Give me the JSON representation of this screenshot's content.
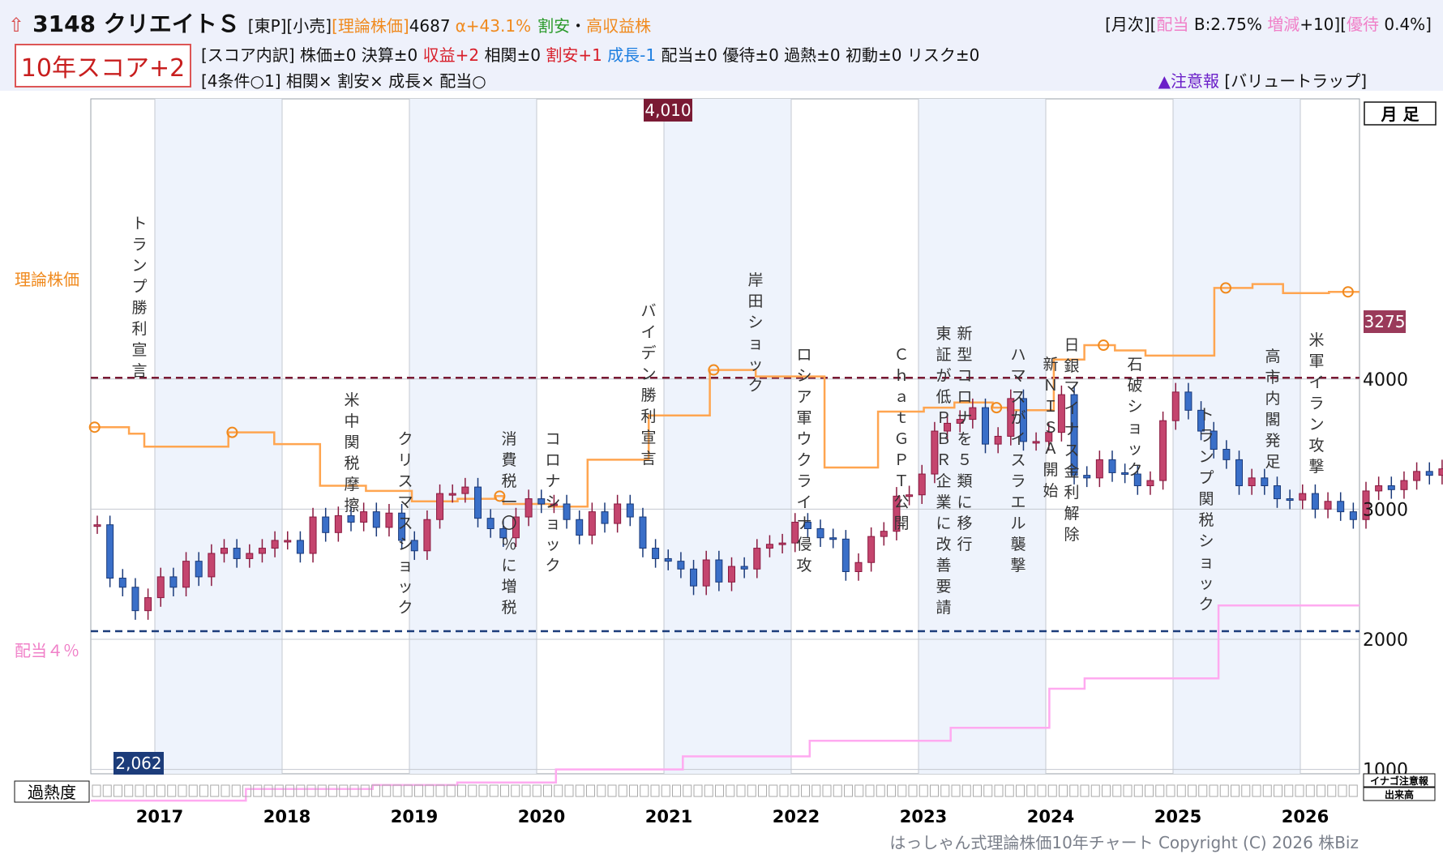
{
  "header": {
    "home_icon": "home-arrow-icon",
    "code_name": "3148 クリエイトＳ",
    "market": "[東P][小売]",
    "theory_label": "[理論株価]",
    "theory_value": "4687",
    "alpha": "α+43.1%",
    "tag_cheap": "割安",
    "tag_sep": "・",
    "tag_profit": "高収益株",
    "right_prefix": "[月次][",
    "div_label": "配当",
    "div_value": " B:2.75% ",
    "change_label": "増減",
    "change_value": "+10][",
    "yutai_label": "優待",
    "yutai_value": " 0.4%]"
  },
  "score": {
    "box": "10年スコア+2",
    "b_prefix": "[スコア内訳] 株価±0 決算±0 ",
    "b_profit": "収益+2",
    "b_mid": " 相関±0 ",
    "b_cheap": "割安+1",
    "b_sp": " ",
    "b_growth": "成長-1",
    "b_rest": " 配当±0 優待±0 過熱±0 初動±0 リスク±0",
    "conditions": "[4条件○1] 相関× 割安× 成長× 配当○",
    "warning": "▲注意報",
    "warning_tag": "[バリュートラップ]"
  },
  "labels": {
    "theory_price": "理論株価",
    "dividend4": "配当４％",
    "period": "月 足",
    "overheat": "過熱度",
    "inago": "イナゴ注意報",
    "volume": "出来高",
    "current_price": "3275",
    "high_label": "4,010",
    "low_label": "2,062"
  },
  "footer": "はっしゃん式理論株価10年チャート Copyright (C) 2026 株Biz",
  "chart_data": {
    "type": "candlestick",
    "title": "3148 クリエイトＳ",
    "y_ticks": [
      1000,
      2000,
      3000,
      4000
    ],
    "y_range": [
      -20,
      5160
    ],
    "x_labels": [
      "2017",
      "2018",
      "2019",
      "2020",
      "2021",
      "2022",
      "2023",
      "2024",
      "2025",
      "2026"
    ],
    "period_start": "2016-08",
    "high": 4010,
    "low": 2062,
    "last_price": 3275,
    "theory_price": [
      3630,
      3630,
      3630,
      3630,
      3630,
      3580,
      3580,
      3480,
      3480,
      3480,
      3480,
      3480,
      3480,
      3480,
      3480,
      3480,
      3480,
      3480,
      3590,
      3590,
      3590,
      3590,
      3590,
      3590,
      3500,
      3500,
      3500,
      3500,
      3500,
      3500,
      3180,
      3180,
      3180,
      3180,
      3180,
      3180,
      3140,
      3140,
      3140,
      3140,
      3140,
      3140,
      3060,
      3060,
      3060,
      3060,
      3060,
      3060,
      3080,
      3080,
      3080,
      3080,
      3080,
      3100,
      3040,
      3040,
      3040,
      3040,
      3040,
      3040,
      3020,
      3020,
      3020,
      3020,
      3020,
      3380,
      3380,
      3380,
      3380,
      3380,
      3380,
      3380,
      3380,
      3720,
      3720,
      3720,
      3720,
      3720,
      3720,
      3720,
      3720,
      4070,
      4070,
      4070,
      4070,
      4070,
      4070,
      4020,
      4020,
      4020,
      4020,
      4020,
      4020,
      4020,
      4020,
      4020,
      3320,
      3320,
      3320,
      3320,
      3320,
      3320,
      3320,
      3750,
      3750,
      3750,
      3750,
      3750,
      3750,
      3780,
      3780,
      3780,
      3780,
      3820,
      3820,
      3820,
      3820,
      3820,
      3780,
      3780,
      3760,
      3760,
      3760,
      3760,
      3760,
      3760,
      4150,
      4150,
      4150,
      4150,
      4260,
      4260,
      4260,
      4260,
      4220,
      4220,
      4220,
      4220,
      4180,
      4180,
      4180,
      4180,
      4180,
      4180,
      4180,
      4180,
      4180,
      4700,
      4700,
      4700,
      4700,
      4700,
      4730,
      4730,
      4730,
      4730,
      4660,
      4660,
      4660,
      4660,
      4660,
      4660,
      4670,
      4670,
      4670,
      4670
    ],
    "theory_markers": [
      0,
      18,
      53,
      81,
      118,
      132,
      148,
      164
    ],
    "dividend_4pct": [
      760,
      760,
      760,
      760,
      760,
      760,
      760,
      760,
      760,
      760,
      760,
      760,
      760,
      760,
      760,
      760,
      760,
      760,
      760,
      760,
      760,
      760,
      850,
      850,
      850,
      850,
      850,
      850,
      850,
      850,
      850,
      850,
      850,
      850,
      850,
      850,
      850,
      850,
      850,
      850,
      880,
      880,
      880,
      880,
      880,
      880,
      880,
      880,
      880,
      880,
      880,
      880,
      900,
      900,
      900,
      900,
      900,
      900,
      900,
      900,
      900,
      900,
      900,
      900,
      900,
      900,
      1000,
      1000,
      1000,
      1000,
      1000,
      1000,
      1000,
      1000,
      1000,
      1000,
      1000,
      1000,
      1000,
      1000,
      1000,
      1000,
      1000,
      1000,
      1100,
      1100,
      1100,
      1100,
      1100,
      1100,
      1100,
      1100,
      1100,
      1100,
      1100,
      1100,
      1100,
      1100,
      1100,
      1100,
      1100,
      1100,
      1220,
      1220,
      1220,
      1220,
      1220,
      1220,
      1220,
      1220,
      1220,
      1220,
      1220,
      1220,
      1220,
      1220,
      1220,
      1220,
      1220,
      1220,
      1220,
      1220,
      1320,
      1320,
      1320,
      1320,
      1320,
      1320,
      1320,
      1320,
      1320,
      1320,
      1320,
      1320,
      1320,
      1320,
      1620,
      1620,
      1620,
      1620,
      1620,
      1700,
      1700,
      1700,
      1700,
      1700,
      1700,
      1700,
      1700,
      1700,
      1700,
      1700,
      1700,
      1700,
      1700,
      1700,
      1700,
      1700,
      1700,
      1700,
      2260,
      2260,
      2260,
      2260,
      2260,
      2260,
      2260,
      2260,
      2260,
      2260,
      2260,
      2260,
      2260,
      2260,
      2260,
      2260,
      2260,
      2260,
      2260,
      2260
    ],
    "high_line": 4010,
    "low_line": 2062,
    "closes": [
      2880,
      2470,
      2400,
      2220,
      2320,
      2480,
      2400,
      2600,
      2480,
      2660,
      2700,
      2620,
      2660,
      2700,
      2760,
      2760,
      2660,
      2940,
      2820,
      2950,
      2900,
      2980,
      2860,
      2970,
      2760,
      2680,
      2920,
      3120,
      3120,
      3170,
      2930,
      2850,
      2780,
      2940,
      3080,
      3040,
      3040,
      2920,
      2800,
      2980,
      2890,
      3040,
      2940,
      2700,
      2620,
      2600,
      2540,
      2410,
      2610,
      2440,
      2560,
      2540,
      2700,
      2730,
      2740,
      2900,
      2850,
      2780,
      2770,
      2520,
      2590,
      2790,
      2830,
      3100,
      3110,
      3270,
      3600,
      3660,
      3690,
      3780,
      3500,
      3560,
      3850,
      3520,
      3520,
      3590,
      3880,
      3260,
      3240,
      3380,
      3280,
      3270,
      3180,
      3220,
      3680,
      3900,
      3760,
      3600,
      3460,
      3380,
      3180,
      3240,
      3180,
      3080,
      3070,
      3120,
      3000,
      3060,
      2980,
      2920,
      3140,
      3180,
      3150,
      3220,
      3290,
      3260,
      3310,
      3350,
      3570,
      3470,
      3350,
      3400,
      3340,
      3520,
      3450,
      3480,
      3480,
      3560,
      3490,
      3700,
      3760,
      3340,
      3470,
      3260,
      3100,
      3260,
      3120,
      3350,
      3250,
      3220,
      3300,
      3340,
      3560,
      3280,
      3560,
      3380,
      3240,
      3220,
      3140,
      3050,
      3070,
      2840,
      2830,
      2800,
      2870,
      2880,
      2780,
      2830,
      2990,
      3020,
      3210,
      3220,
      3320,
      3300,
      3540,
      3250,
      3380,
      3410,
      3310,
      3210,
      3290,
      3260,
      3390,
      3270,
      3160,
      3420,
      3310,
      3300,
      3270,
      3190,
      3320,
      3250
    ]
  }
}
